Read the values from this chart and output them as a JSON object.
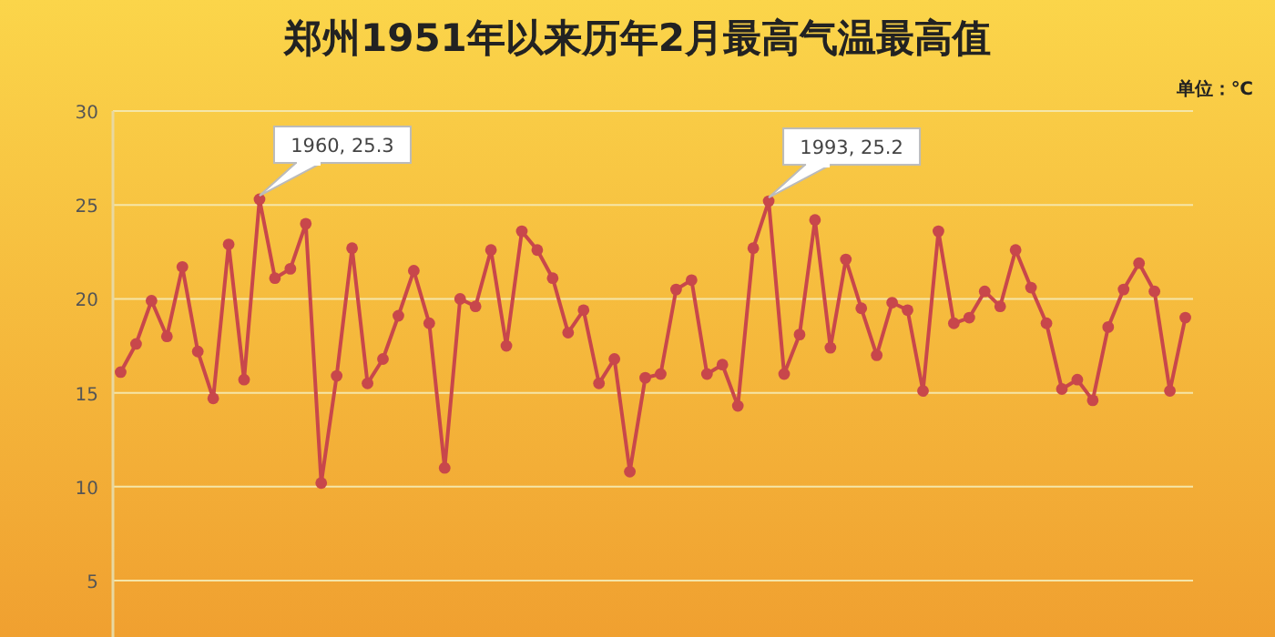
{
  "chart_data": {
    "type": "line",
    "title": "郑州1951年以来历年2月最高气温最高值",
    "annotations": [
      "单位：℃",
      "1960, 25.3",
      "1993, 25.2"
    ],
    "categories": [
      null,
      null,
      null,
      null,
      null,
      null,
      null,
      null,
      null,
      null,
      null,
      null,
      null,
      null,
      null,
      null,
      null,
      null,
      null,
      null,
      null,
      null,
      null,
      null,
      null,
      null,
      null,
      null,
      null,
      null,
      null,
      null,
      null,
      null,
      null,
      null,
      null,
      null,
      null,
      null,
      null,
      null,
      null,
      null,
      null,
      null,
      null,
      null,
      null,
      null,
      null,
      null,
      null,
      null,
      null,
      null,
      null,
      null,
      null,
      null,
      null,
      null,
      null,
      null,
      null,
      null,
      null,
      null,
      null,
      null
    ],
    "series": [
      {
        "color": "#c8474b",
        "values": [
          16.1,
          17.6,
          19.9,
          18.0,
          21.7,
          17.2,
          14.7,
          22.9,
          15.7,
          25.3,
          21.1,
          21.6,
          24.0,
          10.2,
          15.9,
          22.7,
          15.5,
          16.8,
          19.1,
          21.5,
          18.7,
          11.0,
          20.0,
          19.6,
          22.6,
          17.5,
          23.6,
          22.6,
          21.1,
          18.2,
          19.4,
          15.5,
          16.8,
          10.8,
          15.8,
          16.0,
          20.5,
          21.0,
          16.0,
          16.5,
          14.3,
          22.7,
          25.2,
          16.0,
          18.1,
          24.2,
          17.4,
          22.1,
          19.5,
          17.0,
          19.8,
          19.4,
          15.1,
          23.6,
          18.7,
          19.0,
          20.4,
          19.6,
          22.6,
          20.6,
          18.7,
          15.2,
          15.7,
          14.6,
          18.5,
          20.5,
          21.9,
          20.4,
          15.1,
          19.0
        ]
      }
    ],
    "ylim": [
      2,
      30
    ],
    "yticks": [
      5,
      10,
      15,
      20,
      25,
      30
    ],
    "tick_labels": "y",
    "grid": "y",
    "marker": "circle",
    "line_style": "solid"
  }
}
